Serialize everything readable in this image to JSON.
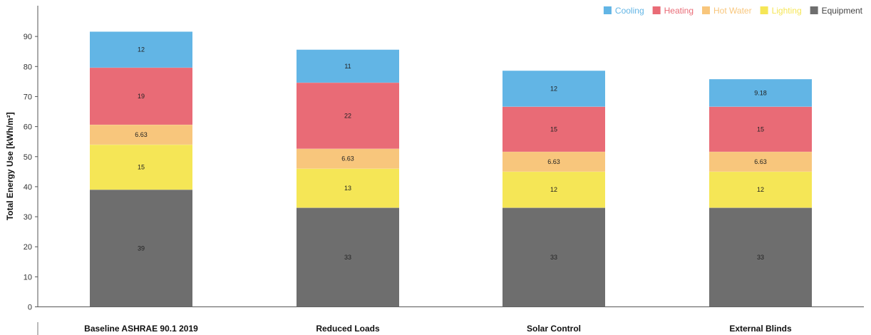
{
  "chart_data": {
    "type": "bar",
    "stacked": true,
    "title": "",
    "xlabel": "",
    "ylabel": "Total Energy Use [kWh/m²]",
    "ylim": [
      0,
      95
    ],
    "yticks": [
      0,
      10,
      20,
      30,
      40,
      50,
      60,
      70,
      80,
      90
    ],
    "grid": false,
    "legend_position": "top-right",
    "categories": [
      "Baseline ASHRAE 90.1 2019",
      "Reduced Loads",
      "Solar Control",
      "External Blinds"
    ],
    "series": [
      {
        "name": "Equipment",
        "color": "#6e6e6e",
        "values": [
          39,
          33,
          33,
          33
        ],
        "labels": [
          "39",
          "33",
          "33",
          "33"
        ]
      },
      {
        "name": "Lighting",
        "color": "#f5e656",
        "values": [
          15,
          13,
          12,
          12
        ],
        "labels": [
          "15",
          "13",
          "12",
          "12"
        ]
      },
      {
        "name": "Hot Water",
        "color": "#f8c67c",
        "values": [
          6.63,
          6.63,
          6.63,
          6.63
        ],
        "labels": [
          "6.63",
          "6.63",
          "6.63",
          "6.63"
        ]
      },
      {
        "name": "Heating",
        "color": "#e96b76",
        "values": [
          19,
          22,
          15,
          15
        ],
        "labels": [
          "19",
          "22",
          "15",
          "15"
        ]
      },
      {
        "name": "Cooling",
        "color": "#62b5e5",
        "values": [
          12,
          11,
          12,
          9.18
        ],
        "labels": [
          "12",
          "11",
          "12",
          "9.18"
        ]
      }
    ],
    "legend_order": [
      "Cooling",
      "Heating",
      "Hot Water",
      "Lighting",
      "Equipment"
    ]
  }
}
